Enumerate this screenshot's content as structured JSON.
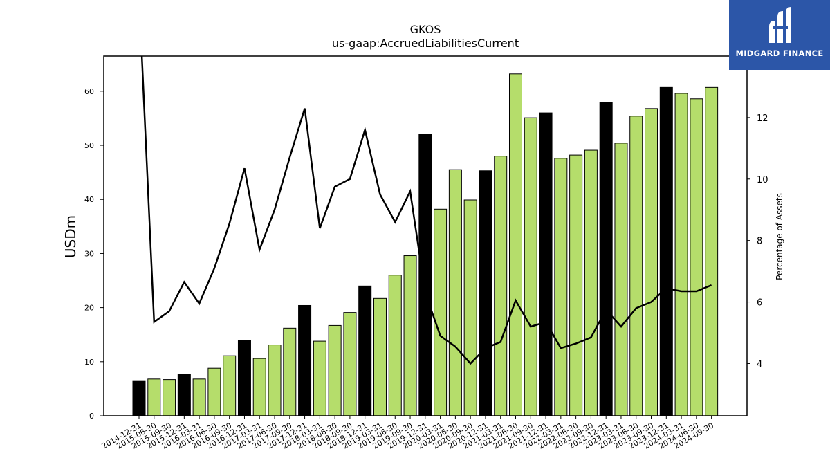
{
  "brand": {
    "name": "MIDGARD FINANCE",
    "background_color": "#2c56a8",
    "icon": "midgard-logo-icon"
  },
  "chart_data": {
    "type": "bar",
    "title": "GKOS",
    "subtitle": "us-gaap:AccruedLiabilitiesCurrent",
    "ylabel": "USDm",
    "ylabel_right": "Percentage of Assets",
    "ylim": [
      0,
      66.5
    ],
    "ylim_right": [
      2.3,
      14.0
    ],
    "yticks": [
      0,
      10,
      20,
      30,
      40,
      50,
      60
    ],
    "yticks_right": [
      4,
      6,
      8,
      10,
      12
    ],
    "categories": [
      "2014-12-31",
      "2015-06-30",
      "2015-09-30",
      "2015-12-31",
      "2016-03-31",
      "2016-06-30",
      "2016-09-30",
      "2016-12-31",
      "2017-03-31",
      "2017-06-30",
      "2017-09-30",
      "2017-12-31",
      "2018-03-31",
      "2018-06-30",
      "2018-09-30",
      "2018-12-31",
      "2019-03-31",
      "2019-06-30",
      "2019-09-30",
      "2019-12-31",
      "2020-03-31",
      "2020-06-30",
      "2020-09-30",
      "2020-12-31",
      "2021-03-31",
      "2021-06-30",
      "2021-09-30",
      "2021-12-31",
      "2022-03-31",
      "2022-06-30",
      "2022-09-30",
      "2022-12-31",
      "2023-03-31",
      "2023-06-30",
      "2023-09-30",
      "2023-12-31",
      "2024-03-31",
      "2024-06-30",
      "2024-09-30"
    ],
    "series": [
      {
        "kind": "bar",
        "axis": "left",
        "values": [
          6.5,
          6.8,
          6.7,
          7.7,
          6.8,
          8.8,
          11.1,
          13.9,
          10.6,
          13.1,
          16.2,
          20.4,
          13.8,
          16.7,
          19.1,
          24.0,
          21.7,
          26.0,
          29.6,
          52.0,
          38.2,
          45.5,
          39.9,
          45.3,
          48.0,
          63.2,
          55.1,
          56.0,
          47.6,
          48.2,
          49.1,
          57.9,
          50.4,
          55.4,
          56.8,
          60.7,
          59.6,
          58.6,
          60.7
        ],
        "annual_color": "#000000",
        "quarter_color": "#b5dd6b"
      },
      {
        "kind": "line",
        "axis": "right",
        "color": "#000000",
        "values": [
          16.0,
          5.35,
          5.7,
          6.65,
          5.95,
          7.1,
          8.55,
          10.35,
          7.7,
          9.0,
          10.7,
          12.3,
          8.4,
          9.75,
          10.0,
          11.6,
          9.5,
          8.6,
          9.6,
          6.3,
          4.9,
          4.55,
          4.0,
          4.5,
          4.7,
          6.05,
          5.2,
          5.35,
          4.5,
          4.65,
          4.85,
          5.75,
          5.2,
          5.8,
          6.0,
          6.45,
          6.35,
          6.35,
          6.55
        ]
      }
    ],
    "grid": false,
    "legend": "none"
  }
}
